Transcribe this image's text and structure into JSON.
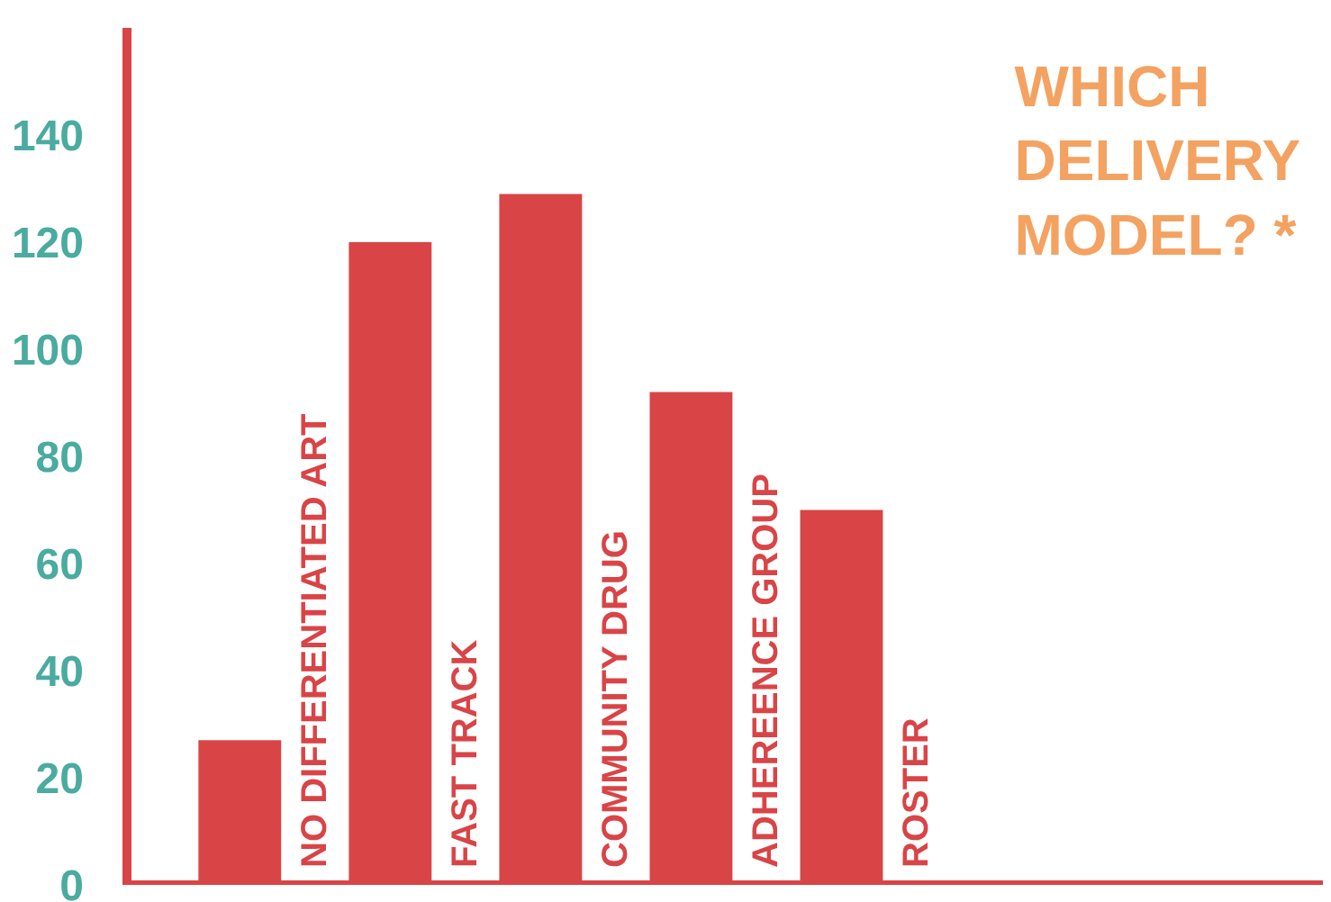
{
  "chart_data": {
    "type": "bar",
    "title": "WHICH\nDELIVERY\nMODEL? *",
    "categories": [
      "NO DIFFERENTIATED ART",
      "FAST TRACK",
      "COMMUNITY DRUG",
      "ADHEREENCE GROUP",
      "ROSTER"
    ],
    "values": [
      27,
      120,
      129,
      92,
      70
    ],
    "color": "#d94447",
    "ylim": [
      0,
      160
    ],
    "yticks": [
      0,
      20,
      40,
      60,
      80,
      100,
      120,
      140
    ],
    "grid": false
  }
}
